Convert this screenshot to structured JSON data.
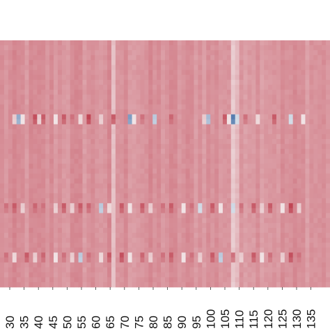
{
  "chart_data": {
    "type": "heatmap",
    "title": "",
    "xlabel": "",
    "ylabel": "",
    "x_start": 30,
    "x_step": 5,
    "x_tick_labels": [
      "30",
      "35",
      "40",
      "45",
      "50",
      "55",
      "60",
      "65",
      "70",
      "75",
      "80",
      "85",
      "90",
      "95",
      "100",
      "105",
      "110",
      "115",
      "120",
      "125",
      "130",
      "135"
    ],
    "y_tick_labels": [],
    "colormap": "RdBu_r",
    "colors": {
      "low": "#2f5f9e",
      "mid": "#f7f7f7",
      "base": "#f2a889",
      "high": "#b2182b"
    },
    "color_range": [
      -1,
      1
    ],
    "baseline_value": 0.45,
    "grid": false,
    "legend": "none",
    "highlighted_rows": [
      {
        "row": 15,
        "cells": [
          {
            "col": 3,
            "v": 0.2
          },
          {
            "col": 4,
            "v": -0.5
          },
          {
            "col": 5,
            "v": 0.1
          },
          {
            "col": 8,
            "v": 0.75
          },
          {
            "col": 9,
            "v": 0.2
          },
          {
            "col": 10,
            "v": 0.7
          },
          {
            "col": 13,
            "v": 0.1
          },
          {
            "col": 15,
            "v": 0.7
          },
          {
            "col": 17,
            "v": 0.6
          },
          {
            "col": 19,
            "v": 0.15
          },
          {
            "col": 21,
            "v": 0.8
          },
          {
            "col": 24,
            "v": 0.2
          },
          {
            "col": 27,
            "v": 0.7
          },
          {
            "col": 31,
            "v": -0.6
          },
          {
            "col": 32,
            "v": 0.1
          },
          {
            "col": 34,
            "v": 0.6
          },
          {
            "col": 37,
            "v": -0.3
          },
          {
            "col": 41,
            "v": 0.65
          },
          {
            "col": 49,
            "v": 0.2
          },
          {
            "col": 50,
            "v": -0.4
          },
          {
            "col": 54,
            "v": 0.7
          },
          {
            "col": 55,
            "v": 0.1
          },
          {
            "col": 56,
            "v": -0.8
          },
          {
            "col": 57,
            "v": -0.2
          },
          {
            "col": 59,
            "v": 0.6
          },
          {
            "col": 62,
            "v": 0.15
          },
          {
            "col": 66,
            "v": 0.7
          },
          {
            "col": 70,
            "v": -0.2
          },
          {
            "col": 73,
            "v": 0.1
          }
        ]
      },
      {
        "row": 33,
        "cells": [
          {
            "col": 1,
            "v": 0.6
          },
          {
            "col": 3,
            "v": 0.7
          },
          {
            "col": 5,
            "v": 0.2
          },
          {
            "col": 8,
            "v": 0.65
          },
          {
            "col": 10,
            "v": 0.6
          },
          {
            "col": 13,
            "v": 0.2
          },
          {
            "col": 15,
            "v": 0.7
          },
          {
            "col": 17,
            "v": 0.2
          },
          {
            "col": 19,
            "v": 0.7
          },
          {
            "col": 21,
            "v": 0.65
          },
          {
            "col": 24,
            "v": -0.3
          },
          {
            "col": 26,
            "v": 0.15
          },
          {
            "col": 29,
            "v": 0.7
          },
          {
            "col": 31,
            "v": 0.1
          },
          {
            "col": 34,
            "v": 0.7
          },
          {
            "col": 36,
            "v": 0.2
          },
          {
            "col": 39,
            "v": 0.6
          },
          {
            "col": 41,
            "v": 0.7
          },
          {
            "col": 44,
            "v": 0.1
          },
          {
            "col": 46,
            "v": 0.6
          },
          {
            "col": 48,
            "v": -0.2
          },
          {
            "col": 51,
            "v": 0.7
          },
          {
            "col": 53,
            "v": 0.1
          },
          {
            "col": 56,
            "v": -0.2
          },
          {
            "col": 58,
            "v": 0.6
          },
          {
            "col": 61,
            "v": 0.7
          },
          {
            "col": 63,
            "v": 0.2
          },
          {
            "col": 65,
            "v": 0.7
          },
          {
            "col": 68,
            "v": 0.1
          },
          {
            "col": 70,
            "v": 0.8
          },
          {
            "col": 72,
            "v": 0.2
          }
        ]
      },
      {
        "row": 43,
        "cells": [
          {
            "col": 1,
            "v": 0.6
          },
          {
            "col": 3,
            "v": 0.15
          },
          {
            "col": 6,
            "v": 0.7
          },
          {
            "col": 8,
            "v": 0.2
          },
          {
            "col": 10,
            "v": 0.65
          },
          {
            "col": 13,
            "v": 0.1
          },
          {
            "col": 15,
            "v": 0.6
          },
          {
            "col": 17,
            "v": 0.2
          },
          {
            "col": 19,
            "v": -0.3
          },
          {
            "col": 21,
            "v": 0.6
          },
          {
            "col": 24,
            "v": 0.15
          },
          {
            "col": 26,
            "v": 0.7
          },
          {
            "col": 29,
            "v": 0.75
          },
          {
            "col": 31,
            "v": 0.1
          },
          {
            "col": 34,
            "v": 0.65
          },
          {
            "col": 36,
            "v": 0.2
          },
          {
            "col": 39,
            "v": 0.6
          },
          {
            "col": 41,
            "v": 0.7
          },
          {
            "col": 44,
            "v": 0.1
          },
          {
            "col": 46,
            "v": 0.6
          },
          {
            "col": 48,
            "v": 0.2
          },
          {
            "col": 51,
            "v": 0.7
          },
          {
            "col": 53,
            "v": -0.3
          },
          {
            "col": 56,
            "v": 0.6
          },
          {
            "col": 58,
            "v": 0.2
          },
          {
            "col": 61,
            "v": 0.7
          },
          {
            "col": 63,
            "v": 0.1
          },
          {
            "col": 65,
            "v": 0.6
          },
          {
            "col": 68,
            "v": 0.2
          },
          {
            "col": 70,
            "v": 0.75
          },
          {
            "col": 72,
            "v": 0.6
          }
        ]
      }
    ],
    "highlighted_columns": [
      {
        "col": 27,
        "v": 0.25
      },
      {
        "col": 56,
        "v": 0.2
      },
      {
        "col": 57,
        "v": 0.28
      }
    ]
  }
}
